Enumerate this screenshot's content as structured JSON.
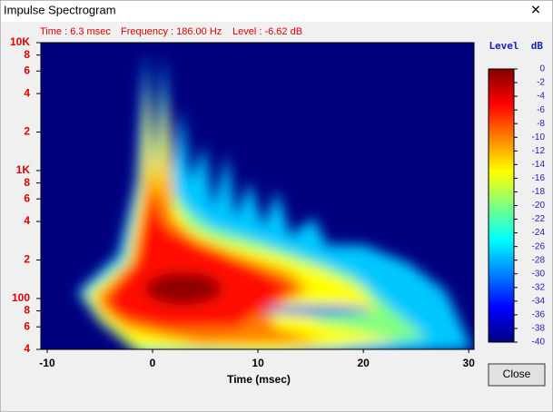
{
  "window": {
    "title": "Impulse Spectrogram",
    "close_icon": "✕",
    "close_button": "Close"
  },
  "status": {
    "time": "Time : 6.3 msec",
    "frequency": "Frequency : 186.00 Hz",
    "level": "Level : -6.62 dB"
  },
  "chart_data": {
    "type": "spectrogram",
    "xlabel": "Time (msec)",
    "xlim": [
      -10.6,
      30.5
    ],
    "xticks": [
      -10,
      0,
      10,
      20,
      30
    ],
    "ylim": [
      40,
      10000
    ],
    "log_y": true,
    "yticks": [
      {
        "value": 10000,
        "label": "10K"
      },
      {
        "value": 8000,
        "label": "8"
      },
      {
        "value": 6000,
        "label": "6"
      },
      {
        "value": 4000,
        "label": "4"
      },
      {
        "value": 2000,
        "label": "2"
      },
      {
        "value": 1000,
        "label": "1K"
      },
      {
        "value": 800,
        "label": "8"
      },
      {
        "value": 600,
        "label": "6"
      },
      {
        "value": 400,
        "label": "4"
      },
      {
        "value": 200,
        "label": "2"
      },
      100,
      {
        "value": 80,
        "label": "8"
      },
      {
        "value": 60,
        "label": "6"
      },
      {
        "value": 40,
        "label": "4"
      }
    ],
    "background": "#00007f",
    "colorbar": {
      "label": "Level",
      "unit": "dB",
      "lim": [
        -40,
        0
      ],
      "ticks": [
        0,
        -2,
        -4,
        -6,
        -8,
        -10,
        -12,
        -14,
        -16,
        -18,
        -20,
        -22,
        -24,
        -26,
        -28,
        -30,
        -32,
        -34,
        -36,
        -38,
        -40
      ],
      "colors": [
        "#800000",
        "#ff0000",
        "#ff8000",
        "#ffff00",
        "#80ff80",
        "#00ffff",
        "#0080ff",
        "#0000ff",
        "#00007f"
      ]
    }
  }
}
